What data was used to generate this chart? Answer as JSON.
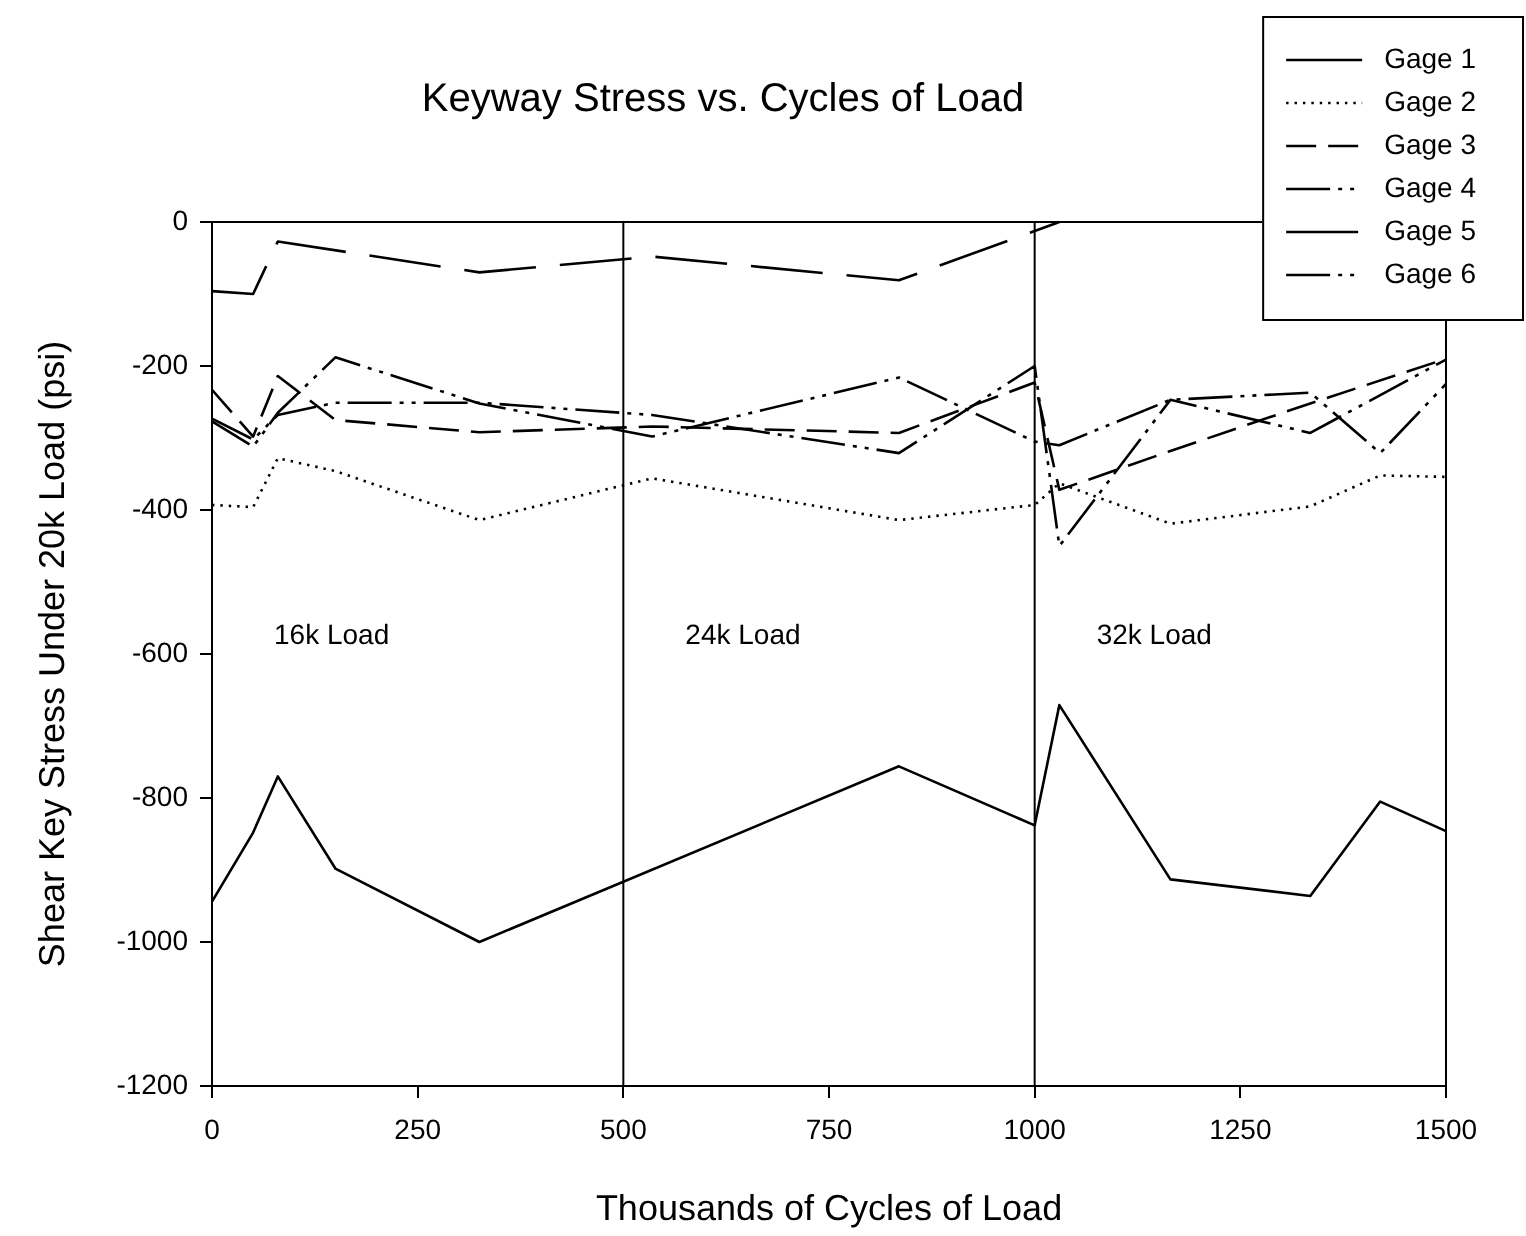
{
  "chart_data": {
    "type": "line",
    "title": "Keyway Stress vs. Cycles of Load",
    "xlabel": "Thousands of Cycles of Load",
    "ylabel": "Shear Key Stress Under 20k Load (psi)",
    "xlim": [
      0,
      1500
    ],
    "xticks": [
      0,
      250,
      500,
      750,
      1000,
      1250,
      1500
    ],
    "ylim": [
      -1200,
      0
    ],
    "yticks": [
      -1200,
      -1000,
      -800,
      -600,
      -400,
      -200,
      0
    ],
    "legend": "top right",
    "ref_lines": [
      {
        "axis": "x",
        "value": 500,
        "color": "#000000"
      },
      {
        "axis": "x",
        "value": 1000,
        "color": "#000000"
      }
    ],
    "annotations": [
      "16k Load",
      "24k Load",
      "32k Load"
    ],
    "series": [
      {
        "name": "Gage 1",
        "color": "#000000",
        "line_style": "solid",
        "x": [
          0,
          50,
          80,
          150,
          325,
          835,
          1000,
          1030,
          1165,
          1335,
          1420,
          1500
        ],
        "values": [
          -944,
          -848,
          -770,
          -898,
          -1000,
          -756,
          -838,
          -671,
          -913,
          -936,
          -805,
          -846
        ]
      },
      {
        "name": "Gage 2",
        "color": "#000000",
        "line_style": "dotted",
        "x": [
          0,
          50,
          80,
          150,
          325,
          535,
          835,
          1000,
          1030,
          1165,
          1335,
          1420,
          1500
        ],
        "values": [
          -393,
          -396,
          -328,
          -346,
          -414,
          -356,
          -414,
          -393,
          -363,
          -419,
          -395,
          -352,
          -354
        ]
      },
      {
        "name": "Gage 3",
        "color": "#000000",
        "line_style": "dashed",
        "x": [
          0,
          50,
          80,
          150,
          325,
          535,
          835,
          1000,
          1030,
          1165,
          1335,
          1500
        ],
        "values": [
          -233,
          -298,
          -214,
          -275,
          -292,
          -284,
          -293,
          -223,
          -372,
          -318,
          -252,
          -190
        ]
      },
      {
        "name": "Gage 4",
        "color": "#000000",
        "line_style": "dashdot",
        "x": [
          0,
          50,
          80,
          150,
          325,
          535,
          835,
          1000,
          1030,
          1165,
          1335,
          1420,
          1500
        ],
        "values": [
          -277,
          -312,
          -265,
          -188,
          -252,
          -298,
          -216,
          -305,
          -310,
          -247,
          -237,
          -321,
          -225
        ]
      },
      {
        "name": "Gage 5",
        "color": "#000000",
        "line_style": "longdash",
        "x": [
          0,
          50,
          80,
          325,
          535,
          835,
          1030
        ],
        "values": [
          -96,
          -100,
          -27,
          -70,
          -48,
          -81,
          0
        ]
      },
      {
        "name": "Gage 6",
        "color": "#000000",
        "line_style": "dashdot",
        "x": [
          0,
          50,
          80,
          150,
          325,
          535,
          835,
          1000,
          1030,
          1165,
          1335,
          1500
        ],
        "values": [
          -273,
          -302,
          -268,
          -251,
          -251,
          -268,
          -321,
          -200,
          -450,
          -247,
          -293,
          -191
        ]
      }
    ]
  }
}
